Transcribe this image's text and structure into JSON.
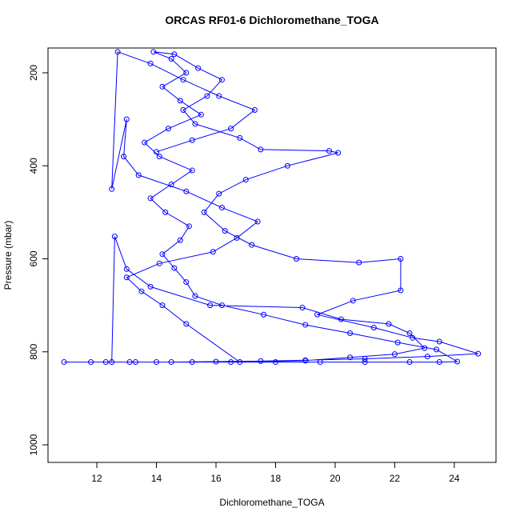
{
  "chart_data": {
    "type": "line",
    "title": "ORCAS RF01-6 Dichloromethane_TOGA",
    "x_label": "Dichloromethane_TOGA",
    "y_label": "Pressure (mbar)",
    "xlim": [
      10.36,
      25.4
    ],
    "ylim": [
      1037.8,
      146.7
    ],
    "xticks": [
      12,
      14,
      16,
      18,
      20,
      22,
      24
    ],
    "yticks": [
      200,
      400,
      600,
      800,
      1000
    ],
    "series": [
      {
        "color": "#0000ff",
        "x": [
          10.9,
          11.8,
          12.3,
          13.1,
          14.0,
          15.2,
          16.5,
          18.0,
          19.5,
          21.0,
          22.5,
          23.5,
          24.1,
          23.4,
          22.1,
          20.5,
          19.0,
          17.6,
          16.2,
          15.3,
          15.0,
          14.6,
          14.2,
          14.8,
          15.1,
          14.3,
          13.8,
          14.5,
          15.2,
          14.1,
          13.6,
          14.4,
          15.5,
          14.8,
          14.2,
          15.0,
          14.5,
          13.9,
          14.6,
          15.4,
          16.2,
          15.7,
          14.9,
          15.3,
          16.8,
          17.5,
          19.8,
          20.1,
          18.4,
          17.0,
          16.1,
          15.6,
          16.3,
          17.2,
          18.7,
          20.8,
          22.2,
          22.2,
          20.6,
          19.4,
          21.3,
          22.6,
          23.5,
          24.8,
          23.1,
          21.0,
          19.0,
          17.5,
          16.0,
          14.5,
          13.3,
          12.5,
          12.6,
          13.0,
          13.8,
          15.8,
          18.9,
          20.2,
          21.8,
          22.5,
          23.0,
          22.0,
          20.5,
          19.0,
          16.8,
          15.0,
          14.2,
          13.5,
          13.0,
          14.1,
          15.9,
          16.7,
          17.4,
          16.2,
          15.0,
          13.4,
          12.9,
          13.0,
          12.5,
          12.7,
          13.8,
          14.9,
          16.1,
          17.3,
          16.5,
          15.2,
          14.0
        ],
        "values": [
          822,
          822,
          822,
          822,
          822,
          822,
          822,
          822,
          822,
          822,
          822,
          822,
          821,
          795,
          780,
          760,
          742,
          720,
          700,
          680,
          650,
          620,
          590,
          560,
          530,
          500,
          470,
          440,
          410,
          380,
          350,
          320,
          290,
          260,
          230,
          200,
          170,
          155,
          160,
          190,
          215,
          250,
          280,
          310,
          340,
          365,
          368,
          372,
          400,
          430,
          460,
          500,
          540,
          570,
          600,
          608,
          600,
          668,
          690,
          720,
          748,
          770,
          778,
          804,
          810,
          815,
          818,
          820,
          821,
          822,
          822,
          822,
          552,
          622,
          660,
          700,
          705,
          730,
          740,
          760,
          792,
          805,
          812,
          819,
          822,
          740,
          700,
          670,
          640,
          610,
          585,
          555,
          520,
          490,
          455,
          420,
          380,
          300,
          450,
          155,
          180,
          215,
          250,
          280,
          320,
          345,
          370
        ]
      }
    ]
  }
}
